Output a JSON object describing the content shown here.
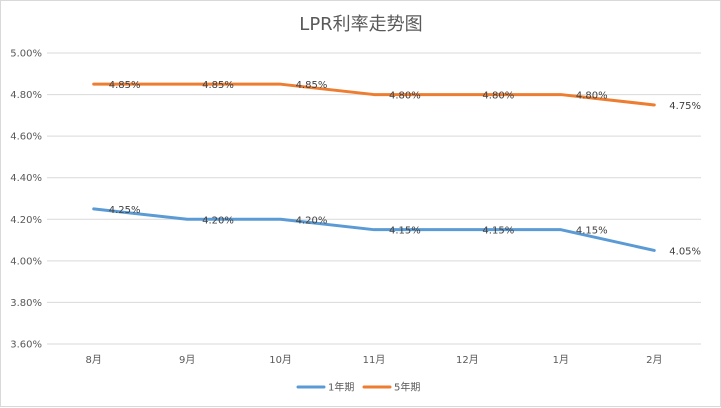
{
  "chart_data": {
    "type": "line",
    "title": "LPR利率走势图",
    "xlabel": "",
    "ylabel": "",
    "categories": [
      "8月",
      "9月",
      "10月",
      "11月",
      "12月",
      "1月",
      "2月"
    ],
    "ylim": [
      3.6,
      5.0
    ],
    "yticks": [
      3.6,
      3.8,
      4.0,
      4.2,
      4.4,
      4.6,
      4.8,
      5.0
    ],
    "ytick_labels": [
      "3.60%",
      "3.80%",
      "4.00%",
      "4.20%",
      "4.40%",
      "4.60%",
      "4.80%",
      "5.00%"
    ],
    "grid": true,
    "legend_position": "bottom",
    "series": [
      {
        "name": "1年期",
        "color": "#5b9bd5",
        "values": [
          4.25,
          4.2,
          4.2,
          4.15,
          4.15,
          4.15,
          4.05
        ],
        "labels": [
          "4.25%",
          "4.20%",
          "4.20%",
          "4.15%",
          "4.15%",
          "4.15%",
          "4.05%"
        ]
      },
      {
        "name": "5年期",
        "color": "#ed7d31",
        "values": [
          4.85,
          4.85,
          4.85,
          4.8,
          4.8,
          4.8,
          4.75
        ],
        "labels": [
          "4.85%",
          "4.85%",
          "4.85%",
          "4.80%",
          "4.80%",
          "4.80%",
          "4.75%"
        ]
      }
    ]
  }
}
